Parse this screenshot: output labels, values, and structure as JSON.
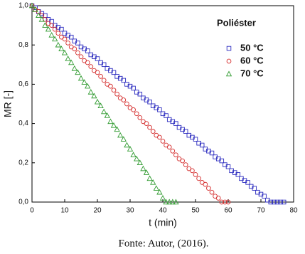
{
  "chart_data": {
    "type": "scatter",
    "x_label": "t (min)",
    "y_label": "MR [-]",
    "legend_title": "Poliéster",
    "legend": "upper right",
    "xlim": [
      0,
      80
    ],
    "xticks": [
      0,
      10,
      20,
      30,
      40,
      50,
      60,
      70,
      80
    ],
    "ylim": [
      0,
      1
    ],
    "yticks": [
      {
        "value": 0,
        "label": "0,0"
      },
      {
        "value": 0.2,
        "label": "0,2"
      },
      {
        "value": 0.4,
        "label": "0,4"
      },
      {
        "value": 0.6,
        "label": "0,6"
      },
      {
        "value": 0.8,
        "label": "0,8"
      },
      {
        "value": 1,
        "label": "1,0"
      }
    ],
    "series": [
      {
        "name": "50 °C",
        "color": "#2b2bbf",
        "marker": "square",
        "x": [
          0,
          1,
          2,
          3,
          4,
          5,
          6,
          7,
          8,
          9,
          10,
          11,
          12,
          13,
          14,
          15,
          16,
          17,
          18,
          19,
          20,
          21,
          22,
          23,
          24,
          25,
          26,
          27,
          28,
          29,
          30,
          31,
          32,
          33,
          34,
          35,
          36,
          37,
          38,
          39,
          40,
          41,
          42,
          43,
          44,
          45,
          46,
          47,
          48,
          49,
          50,
          51,
          52,
          53,
          54,
          55,
          56,
          57,
          58,
          59,
          60,
          61,
          62,
          63,
          64,
          65,
          66,
          67,
          68,
          69,
          70,
          71,
          72,
          73,
          74,
          75,
          76,
          77
        ],
        "values": [
          1.0,
          0.99,
          0.97,
          0.96,
          0.95,
          0.93,
          0.92,
          0.9,
          0.89,
          0.88,
          0.86,
          0.85,
          0.84,
          0.82,
          0.81,
          0.79,
          0.78,
          0.77,
          0.75,
          0.74,
          0.73,
          0.71,
          0.7,
          0.68,
          0.67,
          0.66,
          0.64,
          0.63,
          0.62,
          0.6,
          0.59,
          0.58,
          0.56,
          0.55,
          0.53,
          0.52,
          0.51,
          0.49,
          0.48,
          0.47,
          0.45,
          0.44,
          0.42,
          0.41,
          0.4,
          0.38,
          0.37,
          0.36,
          0.34,
          0.33,
          0.32,
          0.3,
          0.29,
          0.27,
          0.26,
          0.25,
          0.23,
          0.22,
          0.21,
          0.19,
          0.18,
          0.16,
          0.15,
          0.14,
          0.12,
          0.11,
          0.1,
          0.08,
          0.07,
          0.05,
          0.04,
          0.03,
          0.01,
          0,
          0,
          0,
          0,
          0
        ]
      },
      {
        "name": "60 °C",
        "color": "#d42a2a",
        "marker": "circle",
        "x": [
          0,
          1,
          2,
          3,
          4,
          5,
          6,
          7,
          8,
          9,
          10,
          11,
          12,
          13,
          14,
          15,
          16,
          17,
          18,
          19,
          20,
          21,
          22,
          23,
          24,
          25,
          26,
          27,
          28,
          29,
          30,
          31,
          32,
          33,
          34,
          35,
          36,
          37,
          38,
          39,
          40,
          41,
          42,
          43,
          44,
          45,
          46,
          47,
          48,
          49,
          50,
          51,
          52,
          53,
          54,
          55,
          56,
          57,
          58,
          59,
          60
        ],
        "values": [
          1.0,
          0.98,
          0.97,
          0.95,
          0.93,
          0.91,
          0.9,
          0.88,
          0.86,
          0.84,
          0.83,
          0.81,
          0.79,
          0.78,
          0.76,
          0.74,
          0.72,
          0.71,
          0.69,
          0.67,
          0.66,
          0.64,
          0.62,
          0.6,
          0.59,
          0.57,
          0.55,
          0.53,
          0.52,
          0.5,
          0.48,
          0.47,
          0.45,
          0.43,
          0.41,
          0.4,
          0.38,
          0.36,
          0.34,
          0.33,
          0.31,
          0.29,
          0.28,
          0.26,
          0.24,
          0.22,
          0.21,
          0.19,
          0.17,
          0.16,
          0.14,
          0.12,
          0.1,
          0.09,
          0.07,
          0.05,
          0.03,
          0.02,
          0,
          0,
          0
        ]
      },
      {
        "name": "70 °C",
        "color": "#2f9a2f",
        "marker": "triangle",
        "x": [
          0,
          1,
          2,
          3,
          4,
          5,
          6,
          7,
          8,
          9,
          10,
          11,
          12,
          13,
          14,
          15,
          16,
          17,
          18,
          19,
          20,
          21,
          22,
          23,
          24,
          25,
          26,
          27,
          28,
          29,
          30,
          31,
          32,
          33,
          34,
          35,
          36,
          37,
          38,
          39,
          40,
          41,
          42,
          43,
          44
        ],
        "values": [
          1.0,
          0.98,
          0.95,
          0.93,
          0.9,
          0.88,
          0.85,
          0.83,
          0.8,
          0.78,
          0.76,
          0.73,
          0.71,
          0.68,
          0.66,
          0.63,
          0.61,
          0.59,
          0.56,
          0.54,
          0.51,
          0.49,
          0.46,
          0.44,
          0.41,
          0.39,
          0.37,
          0.34,
          0.32,
          0.29,
          0.27,
          0.24,
          0.22,
          0.2,
          0.17,
          0.15,
          0.12,
          0.1,
          0.07,
          0.05,
          0.02,
          0,
          0,
          0,
          0
        ]
      }
    ]
  },
  "caption": "Fonte: Autor, (2016)."
}
